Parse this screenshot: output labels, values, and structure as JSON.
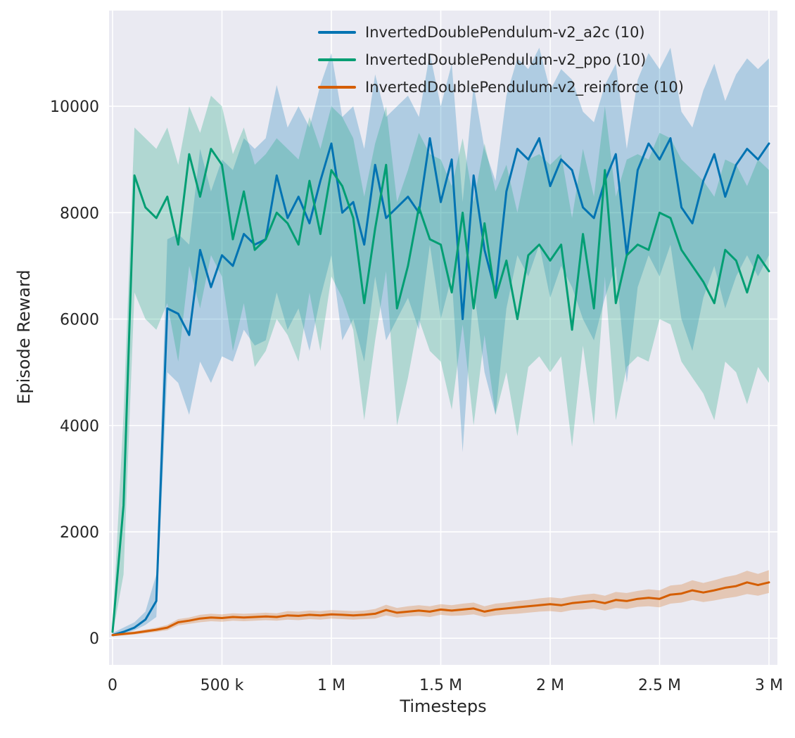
{
  "figure": {
    "background": "#ffffff",
    "axes_background": "#eaeaf2",
    "grid_color": "#ffffff",
    "text_color": "#262626"
  },
  "chart_data": {
    "type": "line",
    "title": "",
    "xlabel": "Timesteps",
    "ylabel": "Episode Reward",
    "grid": true,
    "legend_position": "upper center",
    "band_alpha": 0.25,
    "xlim": [
      0,
      3000000
    ],
    "ylim": [
      -500,
      11800
    ],
    "x_ticks": [
      {
        "v": 0,
        "label": "0"
      },
      {
        "v": 500000,
        "label": "500 k"
      },
      {
        "v": 1000000,
        "label": "1 M"
      },
      {
        "v": 1500000,
        "label": "1.5 M"
      },
      {
        "v": 2000000,
        "label": "2 M"
      },
      {
        "v": 2500000,
        "label": "2.5 M"
      },
      {
        "v": 3000000,
        "label": "3 M"
      }
    ],
    "y_ticks": [
      {
        "v": 0,
        "label": "0"
      },
      {
        "v": 2000,
        "label": "2000"
      },
      {
        "v": 4000,
        "label": "4000"
      },
      {
        "v": 6000,
        "label": "6000"
      },
      {
        "v": 8000,
        "label": "8000"
      },
      {
        "v": 10000,
        "label": "10000"
      }
    ],
    "x_unit": 1000,
    "x": [
      0,
      50,
      100,
      150,
      200,
      250,
      300,
      350,
      400,
      450,
      500,
      550,
      600,
      650,
      700,
      750,
      800,
      850,
      900,
      950,
      1000,
      1050,
      1100,
      1150,
      1200,
      1250,
      1300,
      1350,
      1400,
      1450,
      1500,
      1550,
      1600,
      1650,
      1700,
      1750,
      1800,
      1850,
      1900,
      1950,
      2000,
      2050,
      2100,
      2150,
      2200,
      2250,
      2300,
      2350,
      2400,
      2450,
      2500,
      2550,
      2600,
      2650,
      2700,
      2750,
      2800,
      2850,
      2900,
      2950,
      3000
    ],
    "series": [
      {
        "id": "a2c",
        "name": "InvertedDoublePendulum-v2_a2c (10)",
        "color": "#0173b2",
        "mean": [
          60,
          120,
          200,
          350,
          700,
          6200,
          6100,
          5700,
          7300,
          6600,
          7200,
          7000,
          7600,
          7400,
          7500,
          8700,
          7900,
          8300,
          7800,
          8600,
          9300,
          8000,
          8200,
          7400,
          8900,
          7900,
          8100,
          8300,
          8000,
          9400,
          8200,
          9000,
          6000,
          8700,
          7300,
          6500,
          8400,
          9200,
          9000,
          9400,
          8500,
          9000,
          8800,
          8100,
          7900,
          8600,
          9100,
          7200,
          8800,
          9300,
          9000,
          9400,
          8100,
          7800,
          8600,
          9100,
          8300,
          8900,
          9200,
          9000,
          9300
        ],
        "band_lower": [
          30,
          80,
          150,
          250,
          400,
          5000,
          4800,
          4200,
          5200,
          4800,
          5300,
          5200,
          5800,
          5500,
          5600,
          6500,
          5800,
          6200,
          5400,
          6400,
          7200,
          5600,
          6000,
          5200,
          6800,
          5600,
          6000,
          6400,
          5800,
          7400,
          6000,
          6800,
          3500,
          6600,
          5000,
          4200,
          6200,
          7200,
          6800,
          7400,
          6400,
          7000,
          6600,
          6000,
          5600,
          6400,
          7000,
          4800,
          6600,
          7200,
          6800,
          7400,
          6000,
          5400,
          6400,
          7000,
          6200,
          6800,
          7200,
          6800,
          7200
        ],
        "band_upper": [
          100,
          200,
          300,
          500,
          1200,
          7500,
          7600,
          7400,
          9200,
          8400,
          9000,
          8800,
          9400,
          9200,
          9400,
          10400,
          9600,
          10000,
          9600,
          10400,
          11000,
          9800,
          10000,
          9200,
          10600,
          9800,
          10000,
          10200,
          9800,
          11000,
          10000,
          10800,
          8200,
          10400,
          9200,
          8600,
          10200,
          10900,
          10700,
          11100,
          10300,
          10700,
          10500,
          9900,
          9700,
          10400,
          10800,
          9200,
          10500,
          11000,
          10700,
          11100,
          9900,
          9600,
          10300,
          10800,
          10100,
          10600,
          10900,
          10700,
          10900
        ]
      },
      {
        "id": "ppo",
        "name": "InvertedDoublePendulum-v2_ppo (10)",
        "color": "#029e73",
        "mean": [
          120,
          2500,
          8700,
          8100,
          7900,
          8300,
          7400,
          9100,
          8300,
          9200,
          8900,
          7500,
          8400,
          7300,
          7500,
          8000,
          7800,
          7400,
          8600,
          7600,
          8800,
          8500,
          7900,
          6300,
          7700,
          8900,
          6200,
          7000,
          8100,
          7500,
          7400,
          6500,
          8000,
          6200,
          7800,
          6400,
          7100,
          6000,
          7200,
          7400,
          7100,
          7400,
          5800,
          7600,
          6200,
          8800,
          6300,
          7200,
          7400,
          7300,
          8000,
          7900,
          7300,
          7000,
          6700,
          6300,
          7300,
          7100,
          6500,
          7200,
          6900
        ],
        "band_lower": [
          60,
          1200,
          6500,
          6000,
          5800,
          6300,
          5200,
          7000,
          6200,
          7200,
          6800,
          5400,
          6300,
          5100,
          5400,
          6000,
          5700,
          5200,
          6500,
          5400,
          6800,
          6400,
          5800,
          4100,
          5600,
          6900,
          4000,
          4900,
          6000,
          5400,
          5200,
          4300,
          5900,
          4000,
          5700,
          4200,
          5000,
          3800,
          5100,
          5300,
          5000,
          5300,
          3600,
          5500,
          4000,
          6800,
          4100,
          5100,
          5300,
          5200,
          6000,
          5900,
          5200,
          4900,
          4600,
          4100,
          5200,
          5000,
          4400,
          5100,
          4800
        ],
        "band_upper": [
          200,
          4200,
          9600,
          9400,
          9200,
          9600,
          8900,
          10000,
          9500,
          10200,
          10000,
          9100,
          9600,
          8900,
          9100,
          9400,
          9200,
          9000,
          9800,
          9200,
          10000,
          9800,
          9400,
          8300,
          9300,
          10000,
          8200,
          8800,
          9500,
          9100,
          9000,
          8500,
          9400,
          8200,
          9300,
          8400,
          8900,
          8000,
          9000,
          9100,
          8900,
          9100,
          7900,
          9200,
          8300,
          10000,
          8300,
          9000,
          9100,
          9000,
          9500,
          9400,
          9000,
          8800,
          8600,
          8300,
          9000,
          8900,
          8500,
          9000,
          8800
        ]
      },
      {
        "id": "reinforce",
        "name": "InvertedDoublePendulum-v2_reinforce (10)",
        "color": "#d55e00",
        "mean": [
          60,
          80,
          100,
          130,
          160,
          200,
          300,
          330,
          370,
          390,
          380,
          400,
          390,
          400,
          410,
          400,
          430,
          420,
          440,
          430,
          450,
          440,
          430,
          440,
          460,
          530,
          480,
          500,
          520,
          500,
          540,
          520,
          540,
          560,
          500,
          540,
          560,
          580,
          600,
          620,
          640,
          620,
          660,
          680,
          700,
          660,
          720,
          700,
          740,
          760,
          740,
          820,
          840,
          900,
          860,
          900,
          950,
          980,
          1050,
          1000,
          1050
        ],
        "band_lower": [
          40,
          55,
          70,
          95,
          120,
          150,
          240,
          270,
          300,
          320,
          310,
          330,
          320,
          330,
          340,
          330,
          350,
          340,
          360,
          350,
          370,
          360,
          350,
          360,
          370,
          430,
          390,
          410,
          420,
          400,
          440,
          420,
          430,
          450,
          400,
          430,
          450,
          460,
          480,
          500,
          510,
          490,
          530,
          540,
          560,
          520,
          570,
          550,
          590,
          600,
          580,
          650,
          670,
          720,
          680,
          710,
          750,
          780,
          830,
          800,
          850
        ],
        "band_upper": [
          80,
          105,
          130,
          165,
          200,
          250,
          360,
          390,
          440,
          460,
          450,
          470,
          460,
          470,
          480,
          470,
          510,
          500,
          520,
          510,
          530,
          520,
          510,
          520,
          550,
          630,
          570,
          600,
          620,
          600,
          640,
          620,
          650,
          670,
          600,
          650,
          670,
          700,
          720,
          750,
          770,
          750,
          790,
          820,
          840,
          800,
          870,
          850,
          890,
          920,
          900,
          990,
          1010,
          1090,
          1040,
          1090,
          1150,
          1190,
          1270,
          1210,
          1280
        ]
      }
    ]
  }
}
